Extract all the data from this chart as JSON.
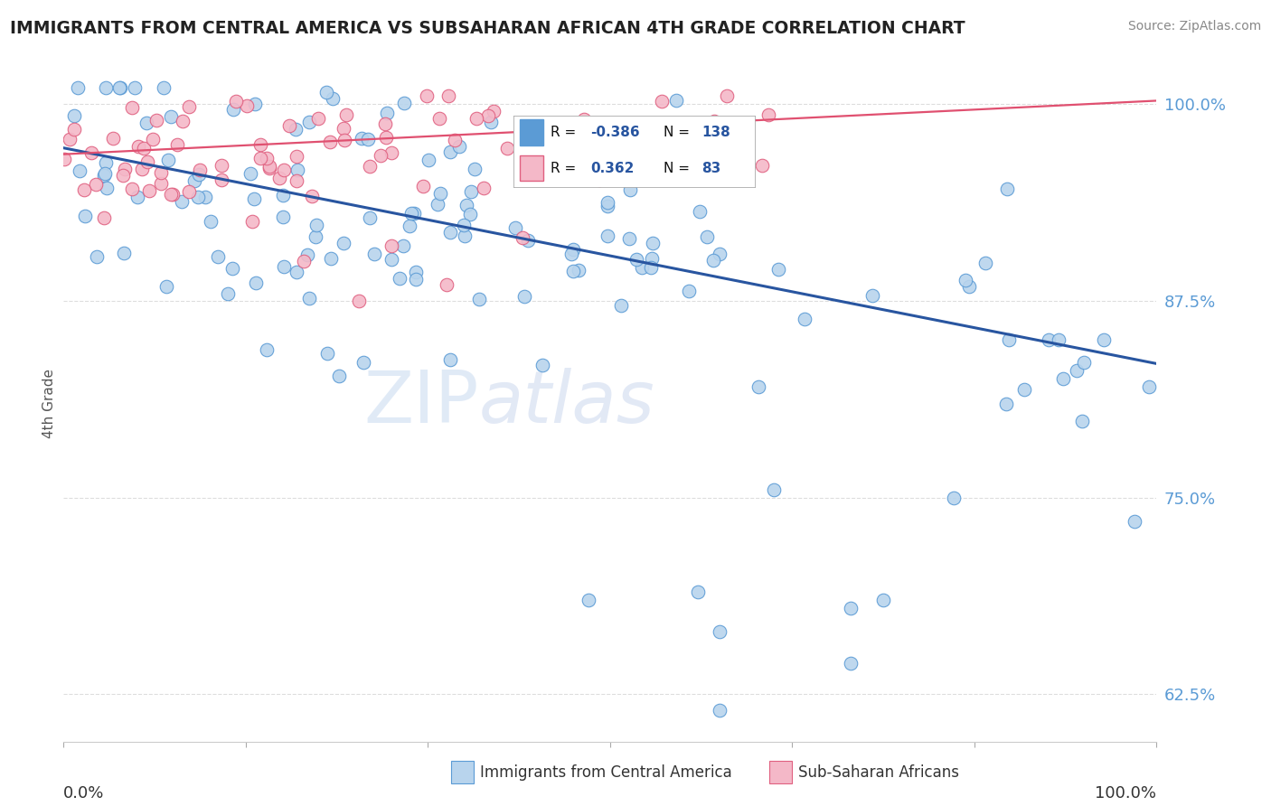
{
  "title": "IMMIGRANTS FROM CENTRAL AMERICA VS SUBSAHARAN AFRICAN 4TH GRADE CORRELATION CHART",
  "source": "Source: ZipAtlas.com",
  "ylabel": "4th Grade",
  "ytick_labels": [
    "62.5%",
    "75.0%",
    "87.5%",
    "100.0%"
  ],
  "ytick_vals": [
    0.625,
    0.75,
    0.875,
    1.0
  ],
  "xlim": [
    0.0,
    1.0
  ],
  "ylim": [
    0.595,
    1.025
  ],
  "series1_color": "#b8d4ed",
  "series1_edge": "#5b9bd5",
  "series2_color": "#f4b8c8",
  "series2_edge": "#e06080",
  "trendline1_color": "#2855a0",
  "trendline2_color": "#e05070",
  "trendline1_y0": 0.972,
  "trendline1_y1": 0.835,
  "trendline2_y0": 0.968,
  "trendline2_y1": 1.002,
  "legend_box_color1": "#5b9bd5",
  "legend_box_color2_face": "#f4b8c8",
  "legend_box_color2_edge": "#e06080",
  "legend_text_color": "#2855a0",
  "legend_R1": "-0.386",
  "legend_N1": "138",
  "legend_R2": "0.362",
  "legend_N2": "83",
  "legend_label1": "Immigrants from Central America",
  "legend_label2": "Sub-Saharan Africans",
  "watermark_zip": "ZIP",
  "watermark_atlas": "atlas",
  "grid_color": "#dddddd",
  "ytick_color": "#5b9bd5",
  "title_color": "#222222",
  "source_color": "#888888",
  "axis_label_color": "#555555"
}
